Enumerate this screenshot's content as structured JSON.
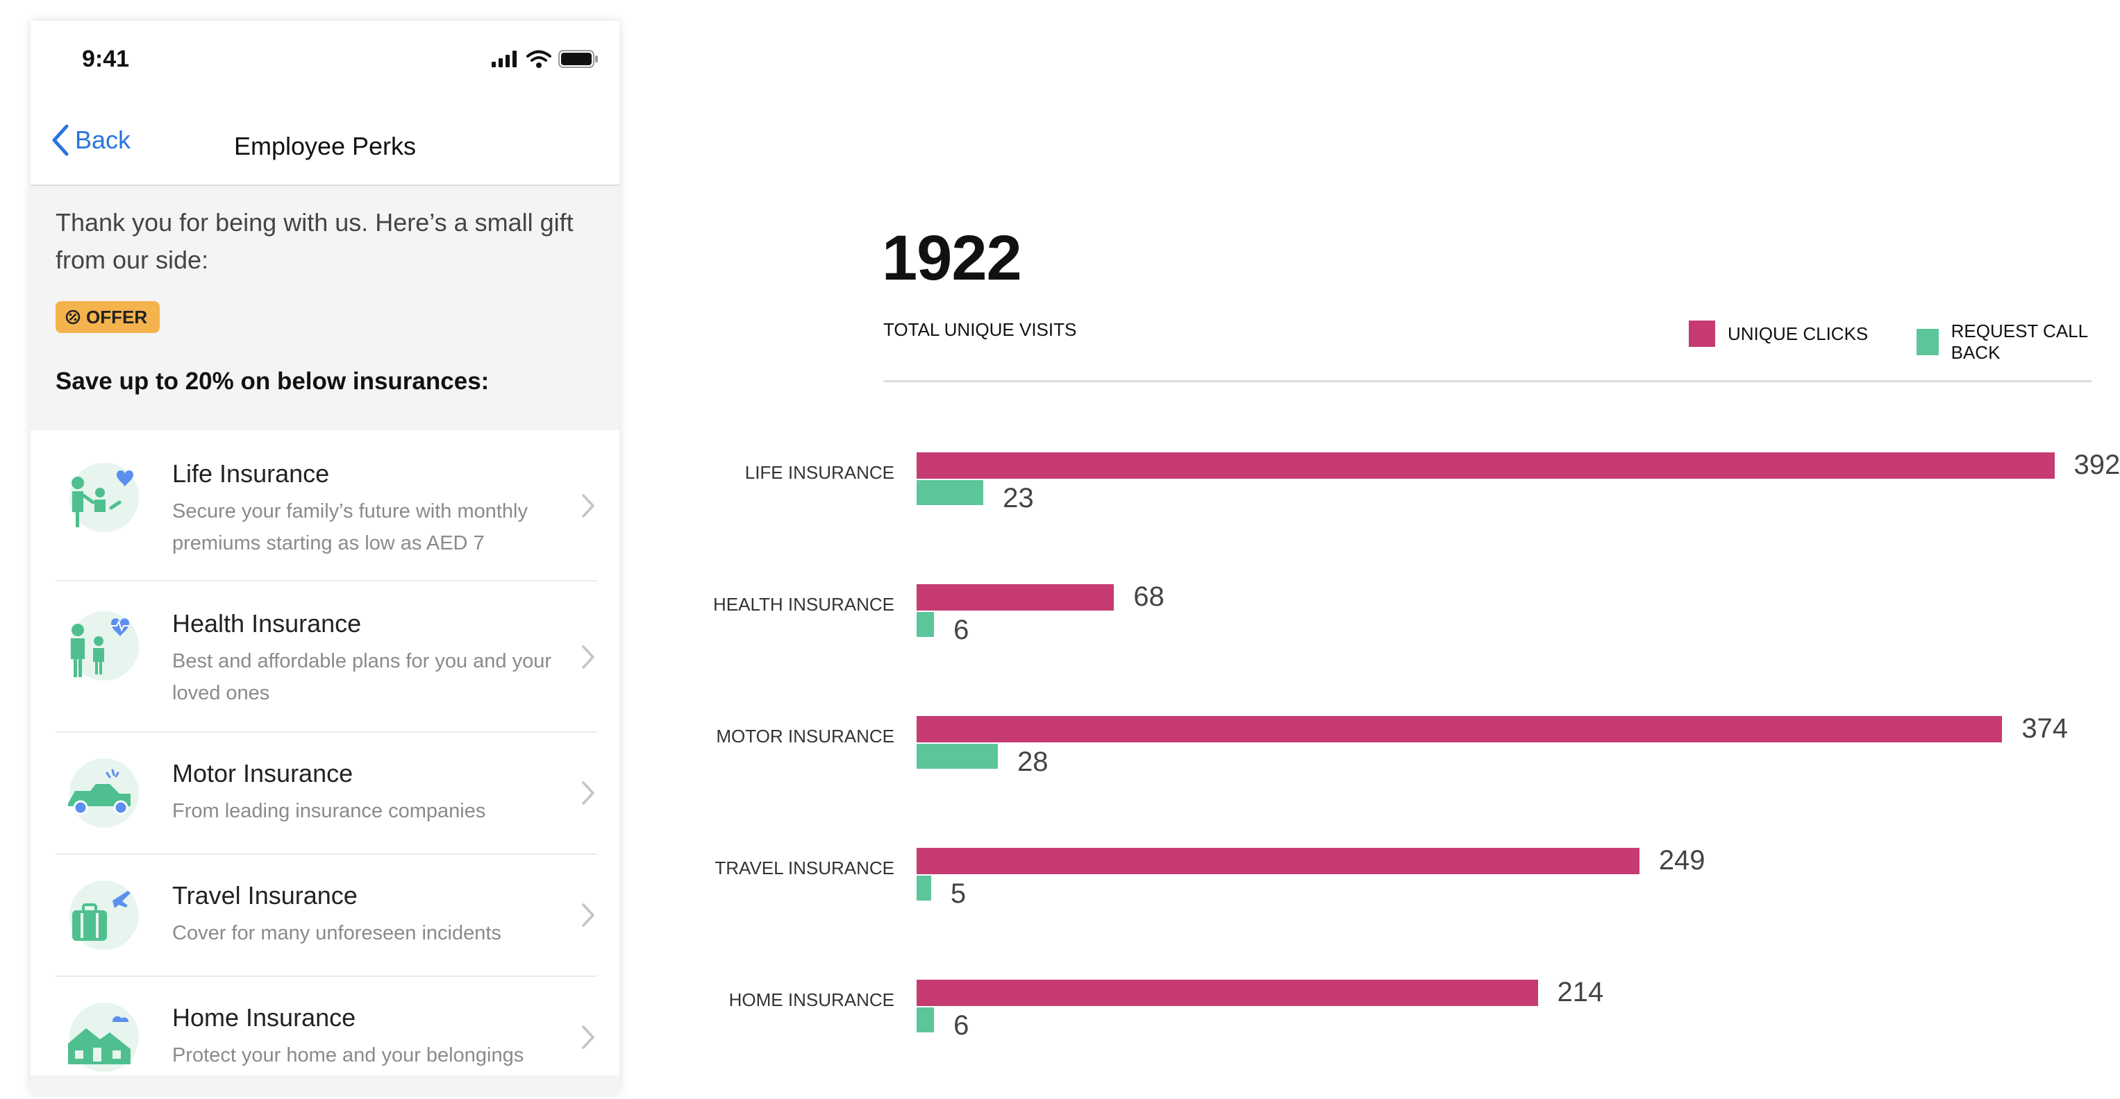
{
  "colors": {
    "unique_clicks": "#c53b72",
    "request_call_back": "#5cc59a",
    "link_blue": "#2a74e0",
    "offer_badge": "#f4b34d"
  },
  "phone": {
    "status_time": "9:41",
    "back_label": "Back",
    "title": "Employee Perks",
    "intro_text": "Thank you for being with us. Here’s a small gift from our side:",
    "offer_label": "OFFER",
    "save_text": "Save up to 20% on below insurances:",
    "items": [
      {
        "title": "Life Insurance",
        "desc": "Secure your family’s future with monthly premiums starting as low as AED 7",
        "icon": "family-heart-icon"
      },
      {
        "title": "Health Insurance",
        "desc": "Best and affordable plans for you and your loved ones",
        "icon": "family-heartbeat-icon"
      },
      {
        "title": "Motor Insurance",
        "desc": "From leading insurance companies",
        "icon": "car-crash-icon"
      },
      {
        "title": "Travel Insurance",
        "desc": "Cover for many unforeseen incidents",
        "icon": "luggage-plane-icon"
      },
      {
        "title": "Home Insurance",
        "desc": "Protect your home and your belongings",
        "icon": "house-cloud-icon"
      }
    ]
  },
  "dashboard": {
    "total_visits": "1922",
    "total_label": "TOTAL UNIQUE VISITS",
    "legend": {
      "unique_clicks": "UNIQUE CLICKS",
      "request_call_back": "REQUEST CALL BACK"
    }
  },
  "chart_data": {
    "type": "bar",
    "orientation": "horizontal",
    "categories": [
      "LIFE INSURANCE",
      "HEALTH INSURANCE",
      "MOTOR INSURANCE",
      "TRAVEL INSURANCE",
      "HOME INSURANCE"
    ],
    "series": [
      {
        "name": "UNIQUE CLICKS",
        "values": [
          392,
          68,
          374,
          249,
          214
        ]
      },
      {
        "name": "REQUEST CALL BACK",
        "values": [
          23,
          6,
          28,
          5,
          6
        ]
      }
    ],
    "xlim": [
      0,
      425
    ],
    "grid": false,
    "legend_position": "top-right"
  }
}
